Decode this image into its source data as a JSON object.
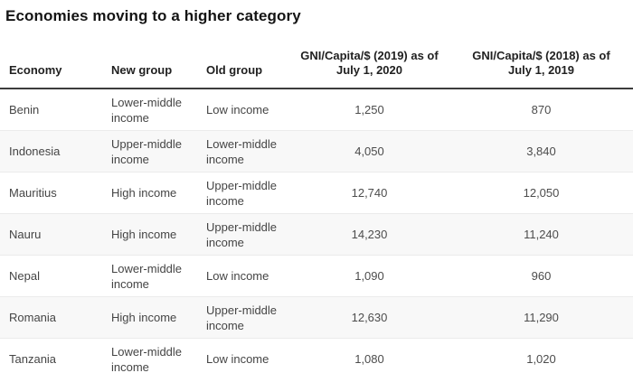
{
  "title": "Economies moving to a higher category",
  "table": {
    "columns": [
      {
        "label": "Economy"
      },
      {
        "label": "New group"
      },
      {
        "label": "Old group"
      },
      {
        "label": "GNI/Capita/$ (2019) as of July 1, 2020"
      },
      {
        "label": "GNI/Capita/$ (2018) as of July 1, 2019"
      }
    ],
    "rows": [
      {
        "economy": "Benin",
        "new_group": "Lower-middle income",
        "old_group": "Low income",
        "gni_2019": "1,250",
        "gni_2018": "870"
      },
      {
        "economy": "Indonesia",
        "new_group": "Upper-middle income",
        "old_group": "Lower-middle income",
        "gni_2019": "4,050",
        "gni_2018": "3,840"
      },
      {
        "economy": "Mauritius",
        "new_group": "High income",
        "old_group": "Upper-middle income",
        "gni_2019": "12,740",
        "gni_2018": "12,050"
      },
      {
        "economy": "Nauru",
        "new_group": "High income",
        "old_group": "Upper-middle income",
        "gni_2019": "14,230",
        "gni_2018": "11,240"
      },
      {
        "economy": "Nepal",
        "new_group": "Lower-middle income",
        "old_group": "Low income",
        "gni_2019": "1,090",
        "gni_2018": "960"
      },
      {
        "economy": "Romania",
        "new_group": "High income",
        "old_group": "Upper-middle income",
        "gni_2019": "12,630",
        "gni_2018": "11,290"
      },
      {
        "economy": "Tanzania",
        "new_group": "Lower-middle income",
        "old_group": "Low income",
        "gni_2019": "1,080",
        "gni_2018": "1,020"
      }
    ]
  },
  "colors": {
    "background": "#ffffff",
    "title_text": "#141414",
    "header_text": "#212121",
    "body_text": "#454545",
    "alt_row_background": "#f8f8f8",
    "row_divider": "#ebebeb",
    "header_divider": "#3c3c3c"
  },
  "chart_data": {
    "type": "table",
    "title": "Economies moving to a higher category",
    "columns": [
      "Economy",
      "New group",
      "Old group",
      "GNI/Capita/$ (2019) as of July 1, 2020",
      "GNI/Capita/$ (2018) as of July 1, 2019"
    ],
    "rows": [
      [
        "Benin",
        "Lower-middle income",
        "Low income",
        1250,
        870
      ],
      [
        "Indonesia",
        "Upper-middle income",
        "Lower-middle income",
        4050,
        3840
      ],
      [
        "Mauritius",
        "High income",
        "Upper-middle income",
        12740,
        12050
      ],
      [
        "Nauru",
        "High income",
        "Upper-middle income",
        14230,
        11240
      ],
      [
        "Nepal",
        "Lower-middle income",
        "Low income",
        1090,
        960
      ],
      [
        "Romania",
        "High income",
        "Upper-middle income",
        12630,
        11290
      ],
      [
        "Tanzania",
        "Lower-middle income",
        "Low income",
        1080,
        1020
      ]
    ]
  }
}
